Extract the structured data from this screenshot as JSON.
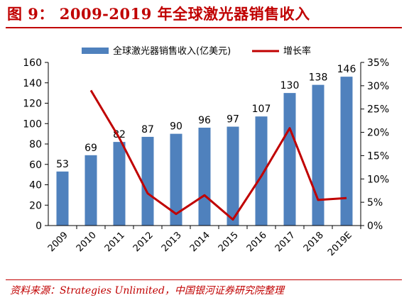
{
  "figure": {
    "title": "图 9：  2009-2019 年全球激光器销售收入",
    "source": "资料来源：Strategies Unlimited，中国银河证券研究院整理"
  },
  "colors": {
    "bar": "#4f81bd",
    "line": "#c00000",
    "title": "#c00000"
  },
  "chart_data": {
    "type": "bar",
    "categories": [
      "2009",
      "2010",
      "2011",
      "2012",
      "2013",
      "2014",
      "2015",
      "2016",
      "2017",
      "2018",
      "2019E"
    ],
    "series": [
      {
        "name": "全球激光器销售收入(亿美元)",
        "type": "bar",
        "axis": "left",
        "values": [
          53,
          69,
          82,
          87,
          90,
          96,
          97,
          107,
          130,
          138,
          146
        ]
      },
      {
        "name": "增长率",
        "type": "line",
        "axis": "right",
        "values": [
          null,
          29.0,
          18.8,
          6.9,
          2.5,
          6.5,
          1.3,
          10.6,
          20.9,
          5.5,
          5.9
        ]
      }
    ],
    "ylim": [
      0,
      160
    ],
    "yticks": [
      "0",
      "20",
      "40",
      "60",
      "80",
      "100",
      "120",
      "140",
      "160"
    ],
    "y2lim": [
      0,
      35
    ],
    "y2ticks": [
      "0%",
      "5%",
      "10%",
      "15%",
      "20%",
      "25%",
      "30%",
      "35%"
    ],
    "data_labels": [
      "53",
      "69",
      "82",
      "87",
      "90",
      "96",
      "97",
      "107",
      "130",
      "138",
      "146"
    ],
    "legend_position": "top",
    "grid": false
  }
}
